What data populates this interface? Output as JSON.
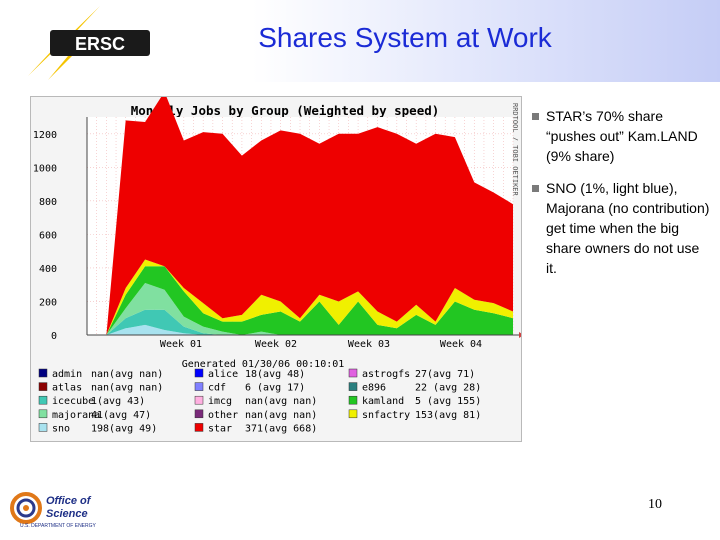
{
  "slide": {
    "title": "Shares System at Work",
    "page_number": "10",
    "header_logo_text": "ERSC",
    "footer_logo_line1": "Office of",
    "footer_logo_line2": "Science",
    "footer_logo_line3": "U.S. DEPARTMENT OF ENERGY"
  },
  "notes": [
    "STAR’s 70% share “pushes out” Kam.LAND (9% share)",
    "SNO (1%, light blue),  Majorana (no contribution) get time when the big share owners do not use it."
  ],
  "chart_data": {
    "type": "area",
    "title": "Monthly Jobs by Group (Weighted by speed)",
    "side_label": "RRDTOOL / TOBI OETIKER",
    "generated": "Generated 01/30/06 00:10:01",
    "y_ticks": [
      "1200",
      "1000",
      "800",
      "600",
      "400",
      "200",
      "0"
    ],
    "y_tick_values": [
      1200,
      1000,
      800,
      600,
      400,
      200,
      0
    ],
    "ylim": [
      0,
      1300
    ],
    "x_ticks": [
      "Week 01",
      "Week 02",
      "Week 03",
      "Week 04"
    ],
    "grid": true,
    "x": [
      "W00.6",
      "W00.8",
      "W01.0",
      "W01.2",
      "W01.4",
      "W01.6",
      "W01.8",
      "W02.0",
      "W02.2",
      "W02.4",
      "W02.6",
      "W02.8",
      "W03.0",
      "W03.2",
      "W03.4",
      "W03.6",
      "W03.8",
      "W04.0",
      "W04.2",
      "W04.4",
      "W04.6",
      "W04.8",
      "W05.0"
    ],
    "series": [
      {
        "name": "sno",
        "color": "#a8e2ef",
        "values": [
          0,
          0,
          40,
          60,
          30,
          10,
          0,
          0,
          0,
          0,
          0,
          0,
          0,
          0,
          0,
          0,
          0,
          0,
          0,
          0,
          0,
          0,
          0
        ]
      },
      {
        "name": "icecube",
        "color": "#40c8b4",
        "values": [
          0,
          0,
          60,
          90,
          120,
          40,
          10,
          0,
          0,
          0,
          0,
          0,
          0,
          0,
          0,
          0,
          0,
          0,
          0,
          0,
          0,
          0,
          0
        ]
      },
      {
        "name": "majorana",
        "color": "#80e0a0",
        "values": [
          0,
          0,
          60,
          160,
          120,
          60,
          40,
          20,
          0,
          20,
          0,
          0,
          0,
          0,
          0,
          0,
          0,
          0,
          0,
          0,
          0,
          0,
          0
        ]
      },
      {
        "name": "kamland",
        "color": "#22c622",
        "values": [
          0,
          0,
          80,
          100,
          140,
          150,
          80,
          60,
          80,
          100,
          140,
          80,
          200,
          60,
          200,
          60,
          40,
          120,
          60,
          200,
          150,
          130,
          100
        ]
      },
      {
        "name": "snfactry",
        "color": "#f0f000",
        "values": [
          0,
          0,
          40,
          40,
          0,
          20,
          60,
          20,
          40,
          120,
          60,
          20,
          40,
          140,
          60,
          80,
          40,
          60,
          20,
          80,
          60,
          60,
          40
        ]
      },
      {
        "name": "star",
        "color": "#ee0000",
        "values": [
          0,
          0,
          1000,
          820,
          1040,
          880,
          1020,
          1100,
          950,
          920,
          1020,
          1100,
          900,
          1000,
          940,
          1100,
          1120,
          960,
          1120,
          900,
          700,
          660,
          640
        ]
      }
    ],
    "legend": [
      [
        {
          "name": "admin",
          "color": "#000080",
          "stats": "nan(avg nan)"
        },
        {
          "name": "alice",
          "color": "#0000ff",
          "stats": "18(avg  48)"
        },
        {
          "name": "astrogfs",
          "color": "#e060e0",
          "stats": "27(avg  71)"
        }
      ],
      [
        {
          "name": "atlas",
          "color": "#8b0000",
          "stats": "nan(avg nan)"
        },
        {
          "name": "cdf",
          "color": "#8080ff",
          "stats": "6 (avg  17)"
        },
        {
          "name": "e896",
          "color": "#2a7f7f",
          "stats": "22 (avg  28)"
        }
      ],
      [
        {
          "name": "icecube",
          "color": "#40c8b4",
          "stats": "1(avg  43)"
        },
        {
          "name": "imcg",
          "color": "#ffb0e0",
          "stats": "nan(avg nan)"
        },
        {
          "name": "kamland",
          "color": "#22c622",
          "stats": "5 (avg 155)"
        }
      ],
      [
        {
          "name": "majorana",
          "color": "#80e0a0",
          "stats": "41(avg  47)"
        },
        {
          "name": "other",
          "color": "#7a2a7a",
          "stats": "nan(avg nan)"
        },
        {
          "name": "snfactry",
          "color": "#f0f000",
          "stats": "153(avg  81)"
        }
      ],
      [
        {
          "name": "sno",
          "color": "#a8e2ef",
          "stats": "198(avg  49)"
        },
        {
          "name": "star",
          "color": "#ee0000",
          "stats": "371(avg 668)"
        }
      ]
    ]
  }
}
